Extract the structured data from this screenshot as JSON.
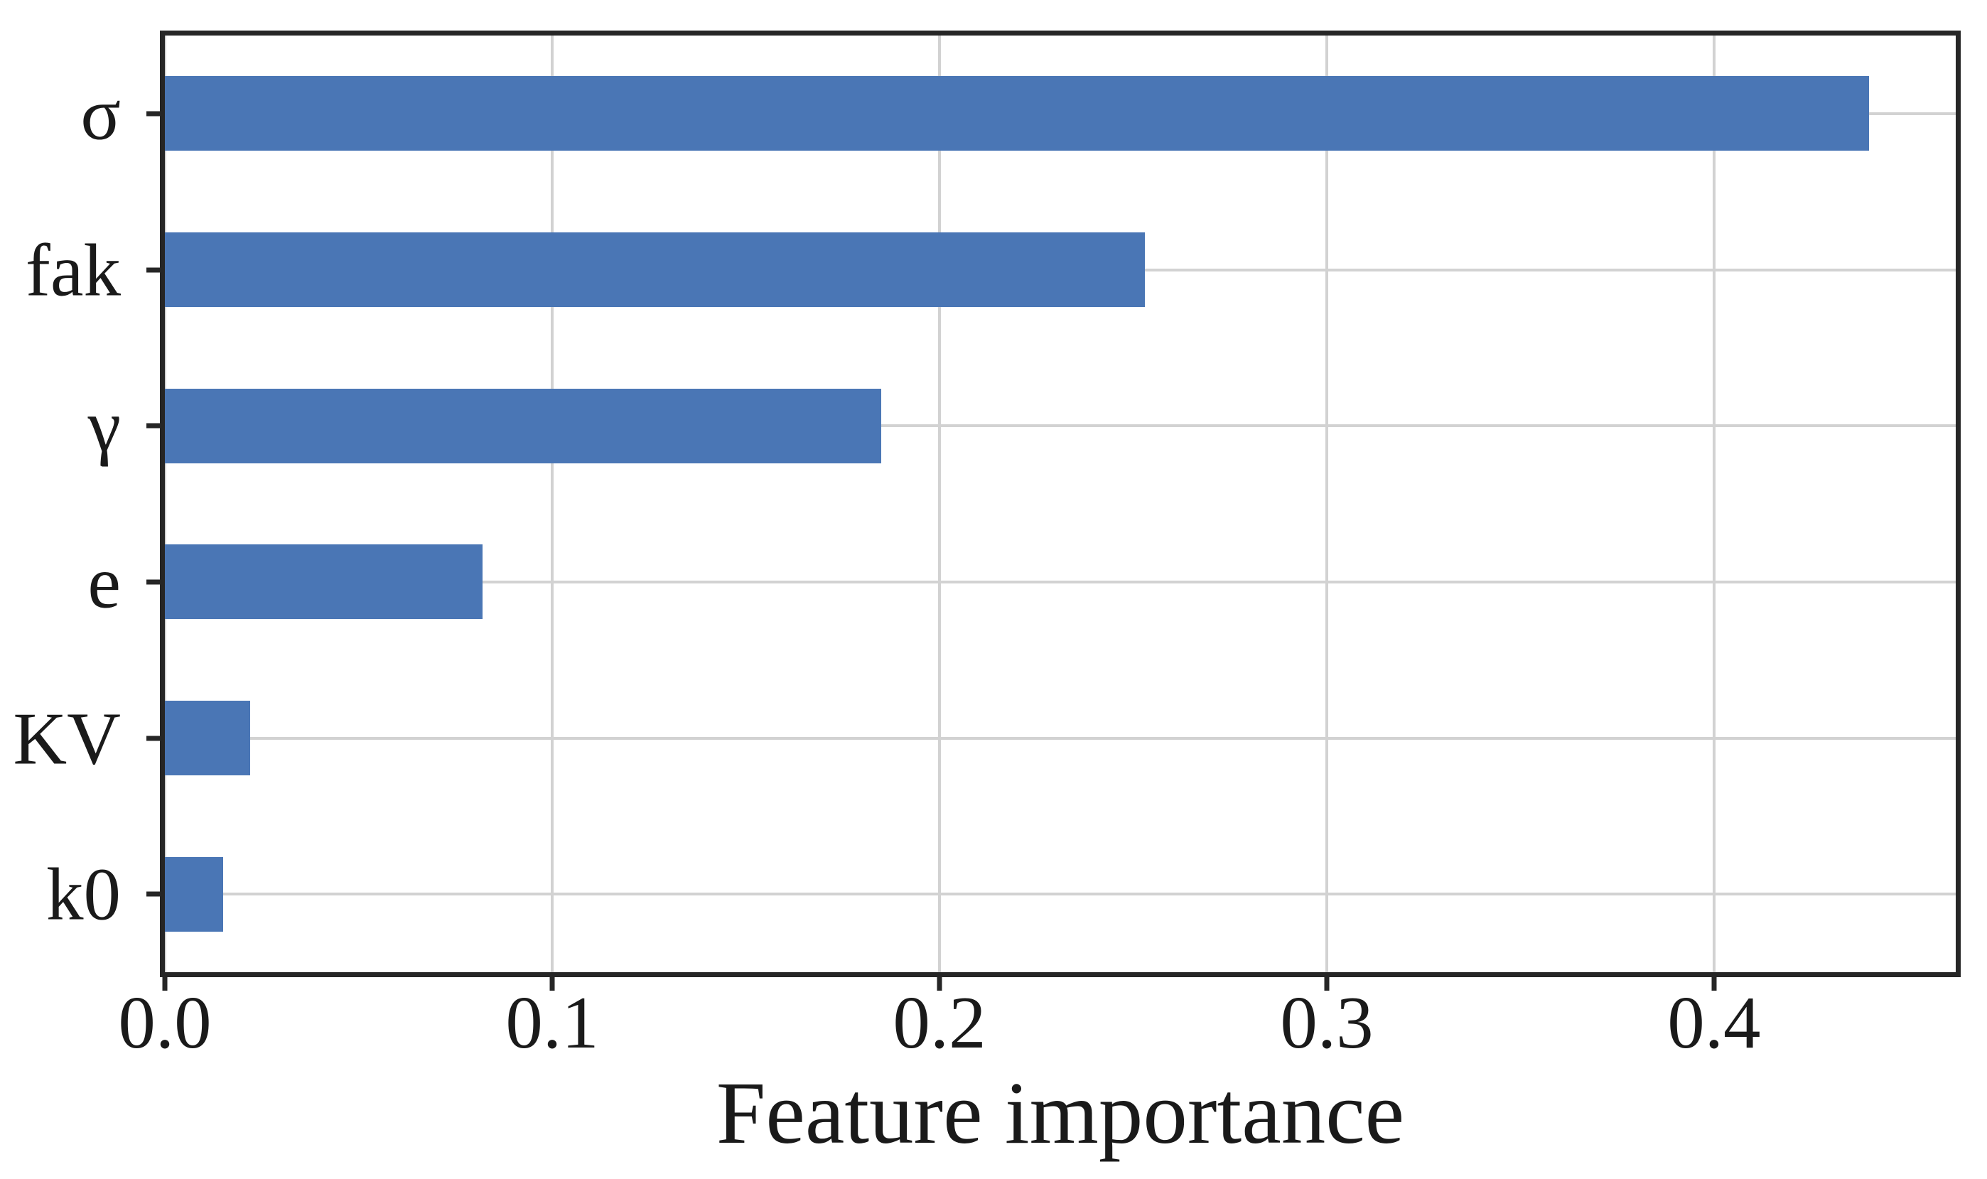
{
  "chart_data": {
    "type": "bar",
    "orientation": "horizontal",
    "title": "",
    "categories": [
      "σ",
      "fak",
      "γ",
      "e",
      "KV",
      "k0"
    ],
    "values": [
      0.44,
      0.253,
      0.185,
      0.082,
      0.022,
      0.015
    ],
    "xlabel": "Feature importance",
    "ylabel": "",
    "xlim": [
      0,
      0.4624
    ],
    "xticks": [
      "0.0",
      "0.1",
      "0.2",
      "0.3",
      "0.4"
    ],
    "xtick_values": [
      0.0,
      0.1,
      0.2,
      0.3,
      0.4
    ],
    "grid": true,
    "legend_position": "none",
    "bar_color": "#4a76b5",
    "grid_color": "#d2d2d2",
    "spine_color": "#262626",
    "text_color": "#1a1a1a"
  }
}
